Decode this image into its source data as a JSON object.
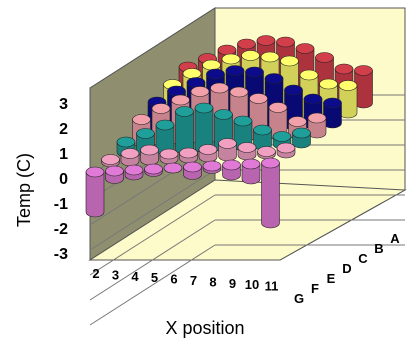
{
  "chart_data": {
    "type": "bar",
    "variant": "3d-cylinder",
    "title": "",
    "xlabel": "X position",
    "ylabel": "Temp (C)",
    "ylim": [
      -3,
      3
    ],
    "yticks": [
      "3",
      "2",
      "1",
      "0",
      "-1",
      "-2",
      "-3"
    ],
    "x_categories": [
      "2",
      "3",
      "4",
      "5",
      "6",
      "7",
      "8",
      "9",
      "10",
      "11"
    ],
    "row_categories": [
      "G",
      "F",
      "E",
      "D",
      "C",
      "B",
      "A"
    ],
    "grid": true,
    "legend": "none",
    "series": [
      {
        "name": "G",
        "color": "#e07ad6",
        "values": [
          -1.6,
          -0.3,
          -0.2,
          -0.1,
          0.0,
          -0.3,
          -0.1,
          -0.4,
          -0.6,
          -2.4
        ]
      },
      {
        "name": "F",
        "color": "#f2a0c2",
        "values": [
          0.1,
          0.3,
          0.4,
          0.2,
          0.2,
          0.3,
          0.5,
          0.3,
          0.1,
          0.2
        ]
      },
      {
        "name": "E",
        "color": "#1f9f9a",
        "values": [
          0.4,
          0.7,
          1.0,
          1.5,
          1.6,
          1.3,
          1.0,
          0.6,
          0.3,
          0.4
        ]
      },
      {
        "name": "D",
        "color": "#f2a0aa",
        "values": [
          0.9,
          1.3,
          1.6,
          1.9,
          2.0,
          1.8,
          1.5,
          1.1,
          0.5,
          0.6
        ]
      },
      {
        "name": "C",
        "color": "#0b0b8c",
        "values": [
          1.2,
          1.6,
          1.9,
          2.2,
          2.3,
          2.2,
          1.9,
          1.4,
          1.0,
          0.8
        ]
      },
      {
        "name": "B",
        "color": "#ffff6e",
        "values": [
          1.5,
          1.9,
          2.2,
          2.4,
          2.5,
          2.4,
          2.2,
          1.6,
          1.2,
          1.1
        ]
      },
      {
        "name": "A",
        "color": "#d23e4a",
        "values": [
          1.8,
          2.1,
          2.4,
          2.6,
          2.7,
          2.6,
          2.3,
          1.9,
          1.4,
          1.3
        ]
      }
    ]
  }
}
